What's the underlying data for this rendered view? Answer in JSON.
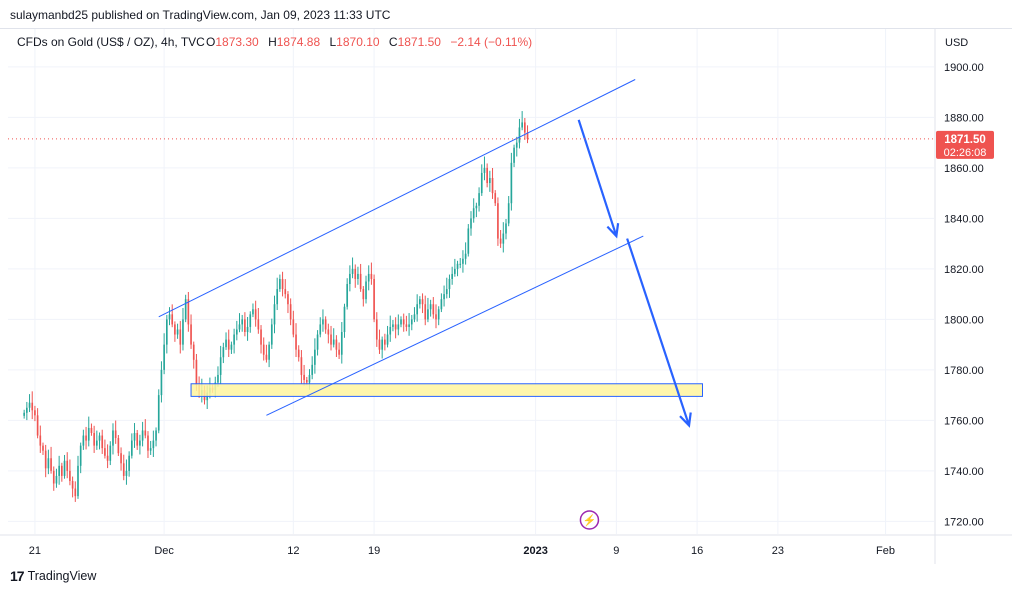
{
  "header": {
    "published_by": "sulaymanbd25 published on TradingView.com, Jan 09, 2023 11:33 UTC"
  },
  "legend": {
    "symbol": "CFDs on Gold (US$ / OZ), 4h, TVC",
    "open_label": "O",
    "open": "1873.30",
    "high_label": "H",
    "high": "1874.88",
    "low_label": "L",
    "low": "1870.10",
    "close_label": "C",
    "close": "1871.50",
    "change": "−2.14 (−0.11%)"
  },
  "currency": "USD",
  "last_price_badge": {
    "price": "1871.50",
    "countdown": "02:26:08"
  },
  "footer": {
    "brand": "TradingView",
    "logo_mark": "17"
  },
  "colors": {
    "up": "#26a69a",
    "down": "#ef5350",
    "trendline": "#2962ff",
    "zone_fill": "#fff59d",
    "zone_border": "#2962ff",
    "arrow": "#2962ff",
    "price_line": "#ef5350",
    "badge_bg": "#ef5350",
    "grid": "#f0f3fa"
  },
  "chart_data": {
    "type": "candlestick",
    "timeframe": "4h",
    "ylim": [
      1715,
      1915
    ],
    "y_ticks": [
      1720,
      1740,
      1760,
      1780,
      1800,
      1820,
      1840,
      1860,
      1880,
      1900
    ],
    "x_ticks": [
      {
        "label": "21",
        "t": 4
      },
      {
        "label": "Dec",
        "t": 52
      },
      {
        "label": "12",
        "t": 100
      },
      {
        "label": "19",
        "t": 130
      },
      {
        "label": "2023",
        "t": 190
      },
      {
        "label": "9",
        "t": 220
      },
      {
        "label": "16",
        "t": 250
      },
      {
        "label": "23",
        "t": 280
      },
      {
        "label": "Feb",
        "t": 320
      }
    ],
    "x_range": [
      -6,
      338
    ],
    "last_price": 1871.5,
    "closes": [
      1763,
      1765,
      1767,
      1764,
      1762,
      1754,
      1750,
      1748,
      1741,
      1745,
      1740,
      1735,
      1738,
      1742,
      1738,
      1744,
      1740,
      1736,
      1733,
      1730,
      1742,
      1750,
      1754,
      1752,
      1757,
      1755,
      1750,
      1752,
      1754,
      1749,
      1746,
      1744,
      1750,
      1756,
      1753,
      1747,
      1743,
      1738,
      1740,
      1746,
      1752,
      1755,
      1750,
      1752,
      1756,
      1754,
      1748,
      1749,
      1752,
      1756,
      1770,
      1780,
      1790,
      1800,
      1802,
      1798,
      1794,
      1796,
      1790,
      1800,
      1808,
      1798,
      1790,
      1784,
      1774,
      1770,
      1772,
      1768,
      1771,
      1773,
      1772,
      1775,
      1778,
      1785,
      1789,
      1792,
      1788,
      1790,
      1794,
      1796,
      1798,
      1800,
      1795,
      1797,
      1802,
      1804,
      1800,
      1796,
      1790,
      1786,
      1784,
      1790,
      1798,
      1806,
      1812,
      1816,
      1812,
      1810,
      1806,
      1800,
      1794,
      1788,
      1785,
      1778,
      1776,
      1775,
      1778,
      1782,
      1788,
      1794,
      1798,
      1800,
      1796,
      1794,
      1790,
      1792,
      1788,
      1786,
      1795,
      1805,
      1814,
      1818,
      1820,
      1816,
      1818,
      1812,
      1808,
      1815,
      1818,
      1816,
      1800,
      1792,
      1788,
      1792,
      1790,
      1794,
      1797,
      1798,
      1796,
      1798,
      1800,
      1798,
      1797,
      1798,
      1800,
      1802,
      1806,
      1808,
      1806,
      1800,
      1804,
      1806,
      1802,
      1800,
      1804,
      1808,
      1810,
      1812,
      1816,
      1818,
      1820,
      1822,
      1822,
      1824,
      1826,
      1836,
      1840,
      1844,
      1845,
      1850,
      1858,
      1860,
      1854,
      1856,
      1850,
      1846,
      1832,
      1830,
      1834,
      1838,
      1846,
      1862,
      1868,
      1870,
      1876,
      1878,
      1874,
      1871.5
    ]
  },
  "annotations": {
    "channel_upper": [
      [
        50,
        1801
      ],
      [
        227,
        1895
      ]
    ],
    "channel_lower": [
      [
        90,
        1762
      ],
      [
        230,
        1833
      ]
    ],
    "support_zone": {
      "t0": 62,
      "t1": 252,
      "y0": 1769.5,
      "y1": 1774.5
    },
    "arrow_1": [
      [
        206,
        1879
      ],
      [
        220,
        1833
      ]
    ],
    "arrow_2": [
      [
        224,
        1832
      ],
      [
        247,
        1758
      ]
    ],
    "event_icon": {
      "t": 210,
      "symbol": "⚡"
    }
  }
}
